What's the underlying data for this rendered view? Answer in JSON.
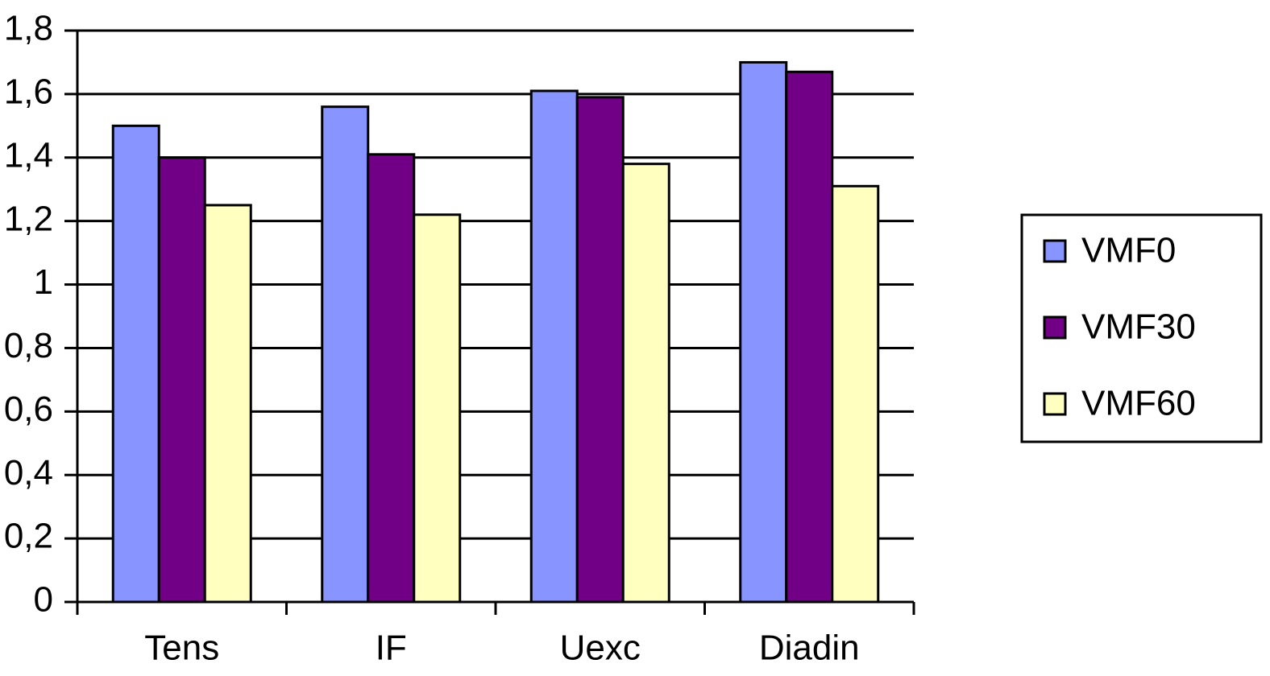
{
  "chart_data": {
    "type": "bar",
    "categories": [
      "Tens",
      "IF",
      "Uexc",
      "Diadin"
    ],
    "series": [
      {
        "name": "VMF0",
        "color": "#8894ff",
        "values": [
          1.5,
          1.56,
          1.61,
          1.7
        ]
      },
      {
        "name": "VMF30",
        "color": "#720087",
        "values": [
          1.4,
          1.41,
          1.59,
          1.67
        ]
      },
      {
        "name": "VMF60",
        "color": "#ffffc0",
        "values": [
          1.25,
          1.22,
          1.38,
          1.31
        ]
      }
    ],
    "ylim": [
      0,
      1.8
    ],
    "yticks": [
      0,
      {
        "value": 0.2,
        "label": "0,2"
      },
      {
        "value": 0.4,
        "label": "0,4"
      },
      {
        "value": 0.6,
        "label": "0,6"
      },
      {
        "value": 0.8,
        "label": "0,8"
      },
      1,
      {
        "value": 1.2,
        "label": "1,2"
      },
      {
        "value": 1.4,
        "label": "1,4"
      },
      {
        "value": 1.6,
        "label": "1,6"
      },
      {
        "value": 1.8,
        "label": "1,8"
      }
    ],
    "grid": true,
    "legend": "right"
  }
}
